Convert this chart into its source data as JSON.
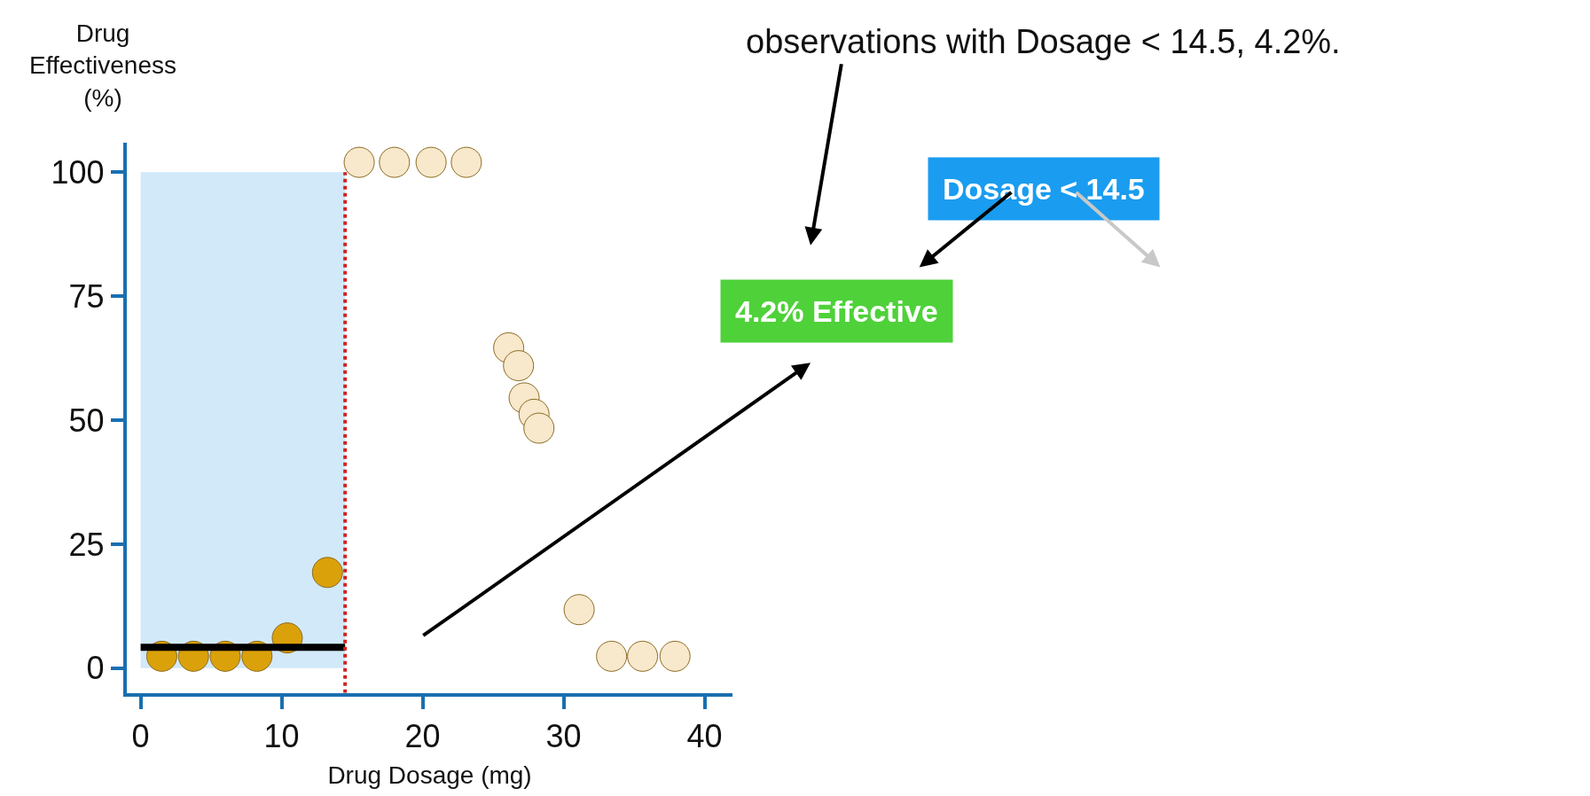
{
  "chart_data": {
    "type": "scatter",
    "xlabel": "Drug Dosage (mg)",
    "ylabel": "Drug Effectiveness (%)",
    "xlim": [
      -1,
      42
    ],
    "ylim": [
      -5,
      106
    ],
    "xticks": [
      0,
      10,
      20,
      30,
      40
    ],
    "yticks": [
      0,
      25,
      50,
      75,
      100
    ],
    "grid": false,
    "legend": false,
    "marker": "circle",
    "series": [
      {
        "color": "#dba10a",
        "x": [
          1.5,
          3.75,
          6,
          8.25,
          10.4,
          13.25
        ],
        "values": [
          2.4,
          2.4,
          2.4,
          2.4,
          6.1,
          19.3
        ]
      },
      {
        "color": "#f8e8cc",
        "x": [
          15.5,
          18,
          20.6,
          23.1,
          26.1,
          26.8,
          27.2,
          27.9,
          28.25,
          31.1,
          33.4,
          35.6,
          37.9
        ],
        "values": [
          102,
          102,
          102,
          102,
          64.6,
          61,
          54.5,
          51.2,
          48.4,
          11.8,
          2.4,
          2.4,
          2.4
        ]
      },
      {
        "type": "line",
        "marker": "none",
        "color": "#000000",
        "x": [
          0,
          14.5
        ],
        "values": [
          4.2,
          4.2
        ]
      }
    ],
    "ref_lines": [
      {
        "axis": "x",
        "value": 14.5,
        "color": "#d42020",
        "line_style": "dotted"
      }
    ],
    "bands": [
      {
        "axis": "x",
        "from": 0,
        "to": 14.5,
        "color": "#bfe0f7"
      }
    ],
    "annotations": [
      "observations with Dosage < 14.5, 4.2%.",
      "Dosage < 14.5",
      "4.2% Effective"
    ]
  }
}
